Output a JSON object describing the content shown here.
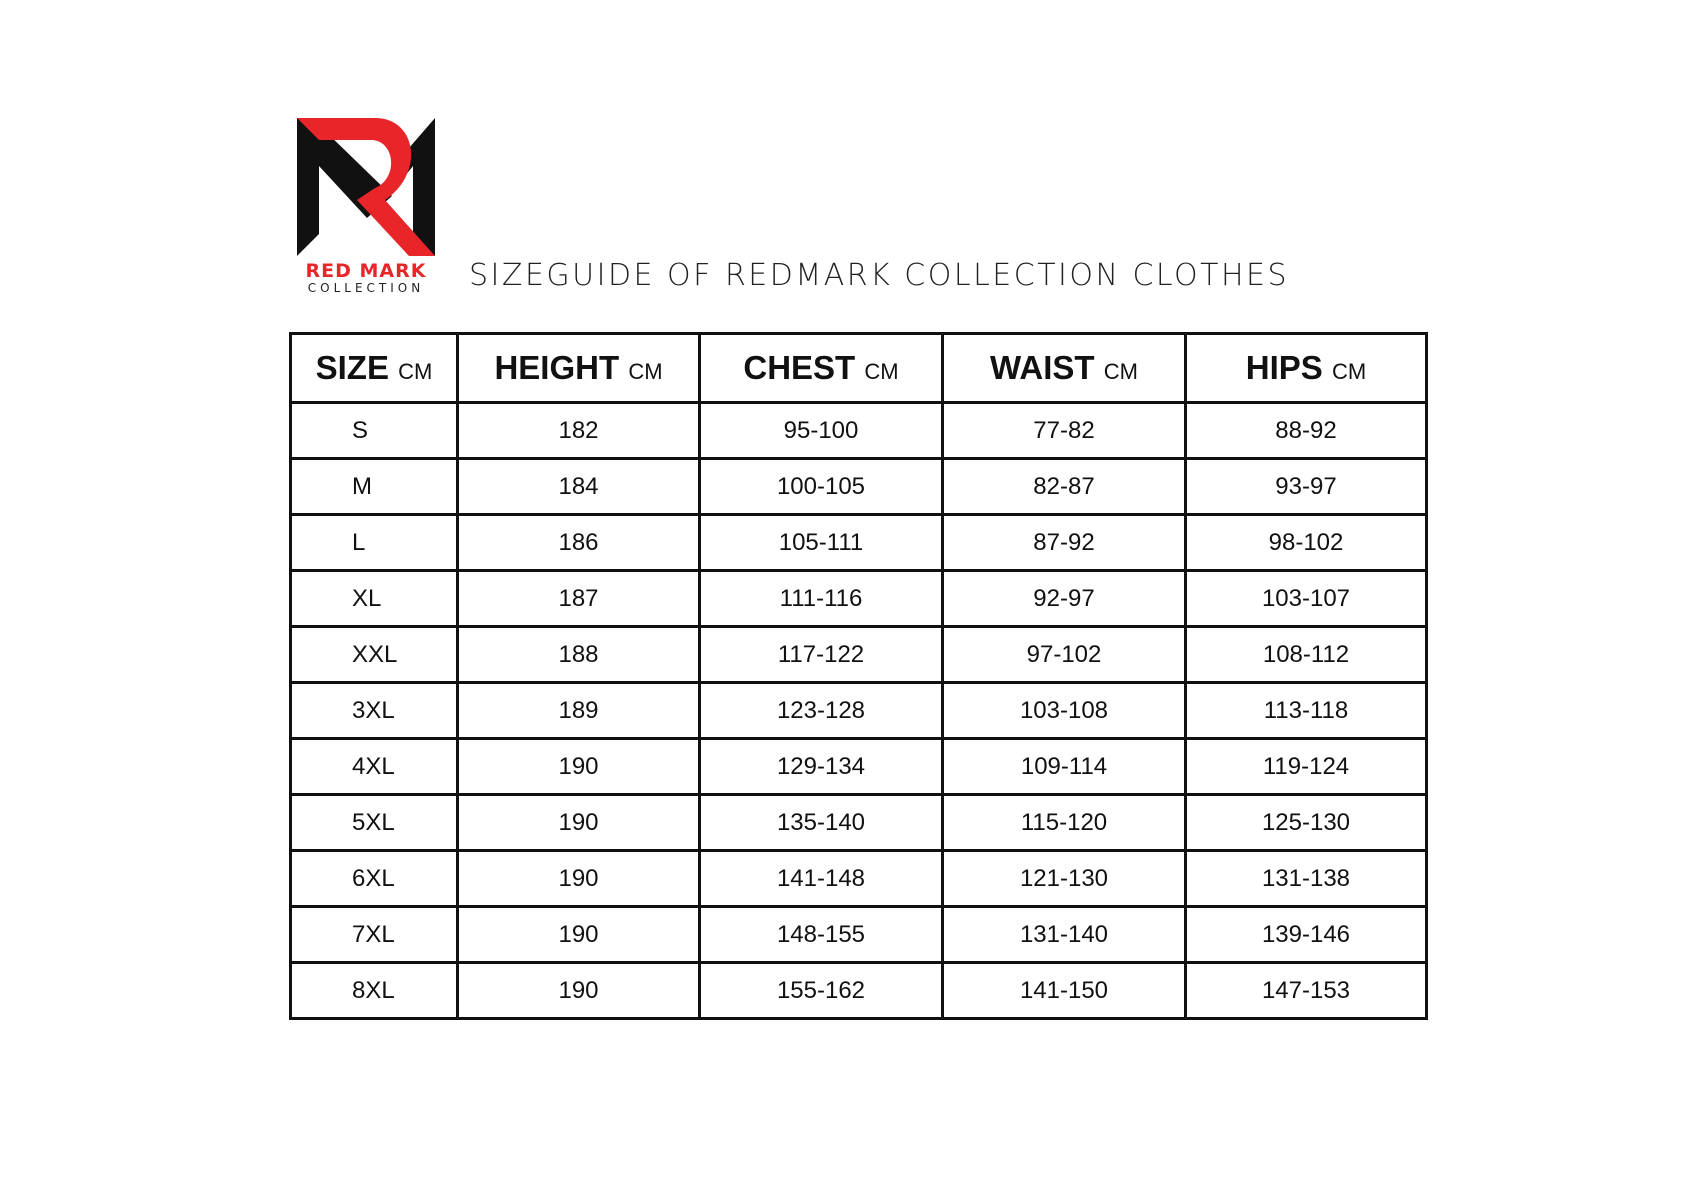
{
  "brand": {
    "name": "RED MARK",
    "subtitle": "COLLECTION",
    "colors": {
      "red": "#e8262a",
      "black": "#111111"
    }
  },
  "title": "SIZEGUIDE OF REDMARK COLLECTION CLOTHES",
  "table": {
    "headers": [
      {
        "label": "SIZE",
        "unit": "CM"
      },
      {
        "label": "HEIGHT",
        "unit": "CM"
      },
      {
        "label": "CHEST",
        "unit": "CM"
      },
      {
        "label": "WAIST",
        "unit": "CM"
      },
      {
        "label": "HIPS",
        "unit": "CM"
      }
    ],
    "rows": [
      [
        "S",
        "182",
        "95-100",
        "77-82",
        "88-92"
      ],
      [
        "M",
        "184",
        "100-105",
        "82-87",
        "93-97"
      ],
      [
        "L",
        "186",
        "105-111",
        "87-92",
        "98-102"
      ],
      [
        "XL",
        "187",
        "111-116",
        "92-97",
        "103-107"
      ],
      [
        "XXL",
        "188",
        "117-122",
        "97-102",
        "108-112"
      ],
      [
        "3XL",
        "189",
        "123-128",
        "103-108",
        "113-118"
      ],
      [
        "4XL",
        "190",
        "129-134",
        "109-114",
        "119-124"
      ],
      [
        "5XL",
        "190",
        "135-140",
        "115-120",
        "125-130"
      ],
      [
        "6XL",
        "190",
        "141-148",
        "121-130",
        "131-138"
      ],
      [
        "7XL",
        "190",
        "148-155",
        "131-140",
        "139-146"
      ],
      [
        "8XL",
        "190",
        "155-162",
        "141-150",
        "147-153"
      ]
    ]
  }
}
